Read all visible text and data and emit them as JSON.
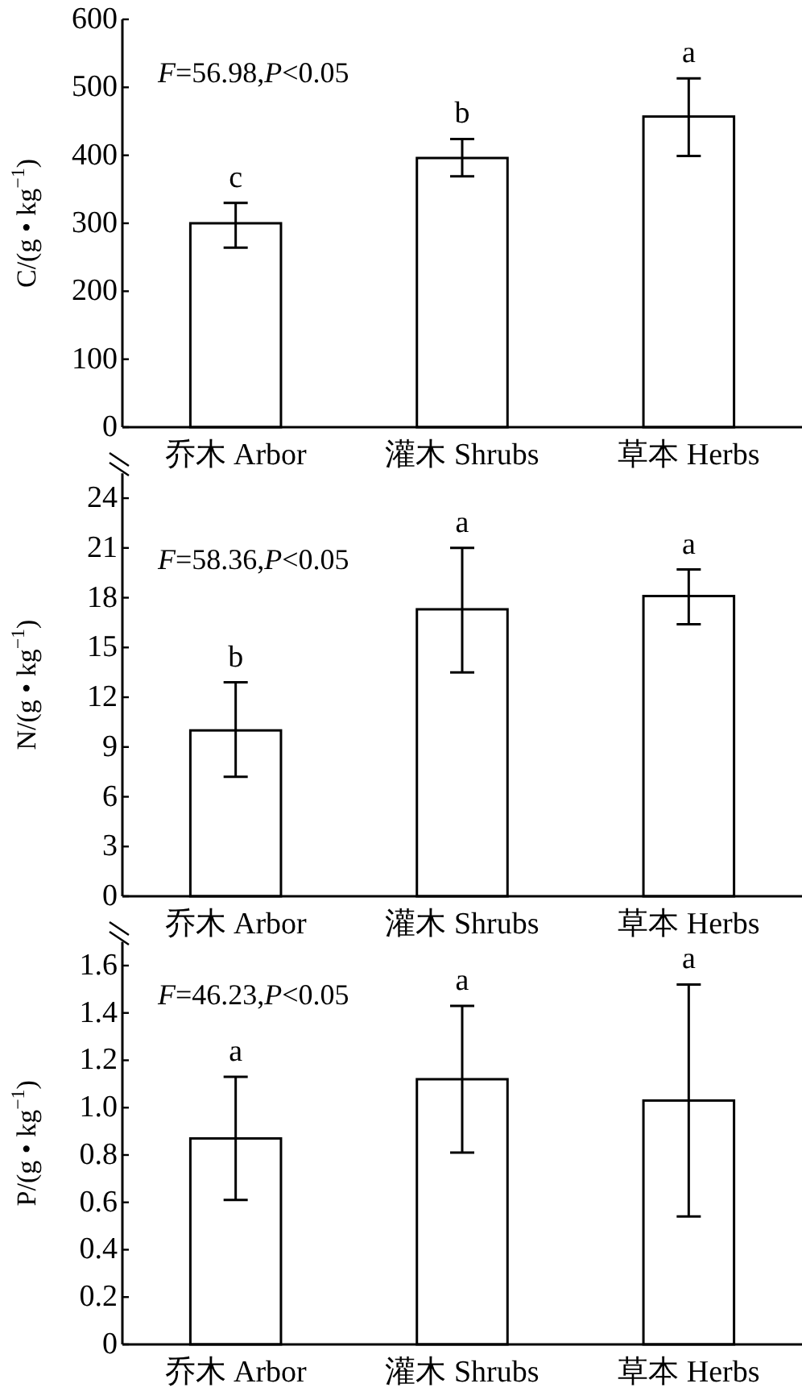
{
  "chart_data": [
    {
      "type": "bar",
      "categories": [
        "乔木 Arbor",
        "灌木 Shrubs",
        "草本 Herbs"
      ],
      "values": [
        300,
        396,
        457
      ],
      "errors": [
        [
          264,
          330
        ],
        [
          369,
          424
        ],
        [
          399,
          513
        ]
      ],
      "color": "#ffffff",
      "ylabel": "C/(g • kg$^{−1}$)",
      "ylim": [
        0,
        600
      ],
      "yticks": [
        0,
        100,
        200,
        300,
        400,
        500,
        600
      ],
      "annotations": [
        "*F*=56.98,*P*<0.05",
        "c",
        "b",
        "a"
      ]
    },
    {
      "type": "bar",
      "categories": [
        "乔木 Arbor",
        "灌木 Shrubs",
        "草本 Herbs"
      ],
      "values": [
        10.0,
        17.3,
        18.1
      ],
      "errors": [
        [
          7.2,
          12.9
        ],
        [
          13.5,
          21.0
        ],
        [
          16.4,
          19.7
        ]
      ],
      "color": "#ffffff",
      "ylabel": "N/(g • kg$^{−1}$)",
      "ylim": [
        0,
        25.5
      ],
      "yticks": [
        0,
        3,
        6,
        9,
        12,
        15,
        18,
        21,
        24
      ],
      "annotations": [
        "*F*=58.36,*P*<0.05",
        "b",
        "a",
        "a"
      ]
    },
    {
      "type": "bar",
      "categories": [
        "乔木 Arbor",
        "灌木 Shrubs",
        "草本 Herbs"
      ],
      "values": [
        0.87,
        1.12,
        1.03
      ],
      "errors": [
        [
          0.61,
          1.13
        ],
        [
          0.81,
          1.43
        ],
        [
          0.54,
          1.52
        ]
      ],
      "color": "#ffffff",
      "ylabel": "P/(g • kg$^{−1}$)",
      "ylim": [
        0,
        1.7
      ],
      "yticks": [
        {
          "value": 0,
          "label": "0"
        },
        {
          "value": 0.2,
          "label": "0.2"
        },
        {
          "value": 0.4,
          "label": "0.4"
        },
        {
          "value": 0.6,
          "label": "0.6"
        },
        {
          "value": 0.8,
          "label": "0.8"
        },
        {
          "value": 1.0,
          "label": "1.0"
        },
        {
          "value": 1.2,
          "label": "1.2"
        },
        {
          "value": 1.4,
          "label": "1.4"
        },
        {
          "value": 1.6,
          "label": "1.6"
        }
      ],
      "annotations": [
        "*F*=46.23,*P*<0.05",
        "a",
        "a",
        "a"
      ]
    }
  ]
}
